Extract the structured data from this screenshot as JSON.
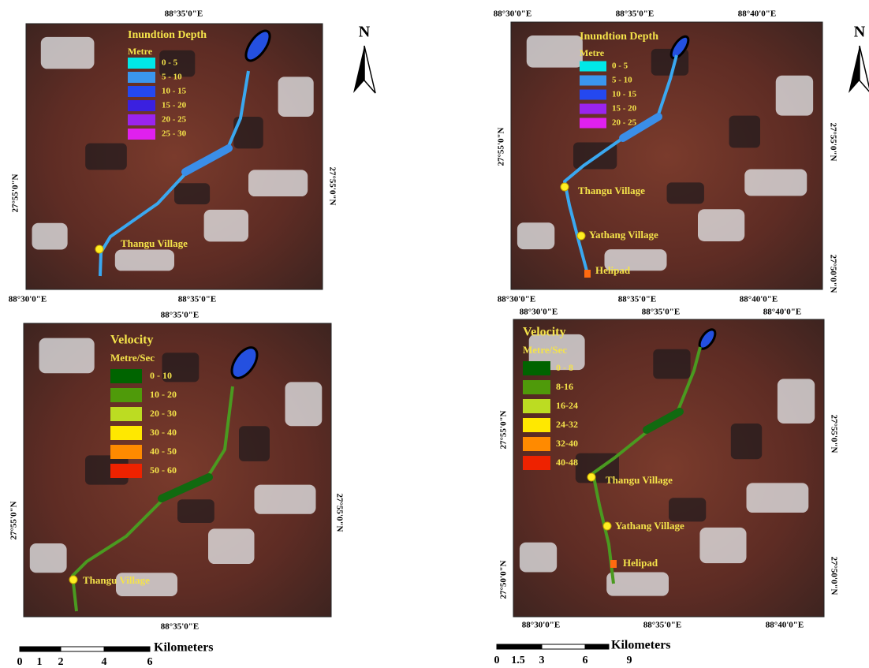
{
  "north": "N",
  "panels": [
    {
      "top_labels": [
        "88°35'0\"E"
      ],
      "bottom_labels": [
        "88°30'0\"E",
        "88°35'0\"E"
      ],
      "left_labels": [
        "27°55'0\"N"
      ],
      "right_labels": [
        "27°55'0\"N"
      ],
      "legend": {
        "title": "Inundtion Depth",
        "unit": "Metre",
        "items": [
          {
            "label": "0 - 5",
            "color": "#00e8e8"
          },
          {
            "label": "5 - 10",
            "color": "#3a96ee"
          },
          {
            "label": "10 - 15",
            "color": "#2448f0"
          },
          {
            "label": "15 - 20",
            "color": "#3a20e0"
          },
          {
            "label": "20 - 25",
            "color": "#9a24ee"
          },
          {
            "label": "25 - 30",
            "color": "#e020ee"
          }
        ]
      },
      "places": [
        "Thangu Village"
      ]
    },
    {
      "top_labels": [
        "88°30'0\"E",
        "88°35'0\"E",
        "88°40'0\"E"
      ],
      "bottom_labels": [
        "88°30'0\"E",
        "88°35'0\"E",
        "88°40'0\"E"
      ],
      "left_labels": [
        "27°55'0\"N"
      ],
      "right_labels": [
        "27°55'0\"N",
        "27°50'0\"N"
      ],
      "legend": {
        "title": "Inundtion Depth",
        "unit": "Metre",
        "items": [
          {
            "label": "0 - 5",
            "color": "#00e8e8"
          },
          {
            "label": "5 - 10",
            "color": "#3a96ee"
          },
          {
            "label": "10 - 15",
            "color": "#2448f0"
          },
          {
            "label": "15 - 20",
            "color": "#9a24ee"
          },
          {
            "label": "20 - 25",
            "color": "#e020ee"
          }
        ]
      },
      "places": [
        "Thangu Village",
        "Yathang Village",
        "Helipad"
      ]
    },
    {
      "top_labels": [
        "88°35'0\"E"
      ],
      "bottom_labels": [
        "88°35'0\"E"
      ],
      "left_labels": [
        "27°55'0\"N"
      ],
      "right_labels": [
        "27°55'0\"N"
      ],
      "legend": {
        "title": "Velocity",
        "unit": "Metre/Sec",
        "items": [
          {
            "label": "0 - 10",
            "color": "#006400"
          },
          {
            "label": "10 - 20",
            "color": "#4f9a0a"
          },
          {
            "label": "20 - 30",
            "color": "#bcdc22"
          },
          {
            "label": "30 - 40",
            "color": "#ffe800"
          },
          {
            "label": "40 - 50",
            "color": "#ff8a00"
          },
          {
            "label": "50 - 60",
            "color": "#ee2200"
          }
        ]
      },
      "places": [
        "Thangu Village"
      ]
    },
    {
      "top_labels": [
        "88°30'0\"E",
        "88°35'0\"E",
        "88°40'0\"E"
      ],
      "bottom_labels": [
        "88°30'0\"E",
        "88°35'0\"E",
        "88°40'0\"E"
      ],
      "left_labels": [
        "27°55'0\"N",
        "27°50'0\"N"
      ],
      "right_labels": [
        "27°55'0\"N",
        "27°50'0\"N"
      ],
      "legend": {
        "title": "Velocity",
        "unit": "Metre/Sec",
        "items": [
          {
            "label": "0 - 8",
            "color": "#006400"
          },
          {
            "label": "8-16",
            "color": "#4f9a0a"
          },
          {
            "label": "16-24",
            "color": "#bcdc22"
          },
          {
            "label": "24-32",
            "color": "#ffe800"
          },
          {
            "label": "32-40",
            "color": "#ff8a00"
          },
          {
            "label": "40-48",
            "color": "#ee2200"
          }
        ]
      },
      "places": [
        "Thangu Village",
        "Yathang Village",
        "Helipad"
      ]
    }
  ],
  "scale_bars": [
    {
      "ticks": [
        "0",
        "1",
        "2",
        "4",
        "6"
      ],
      "unit": "Kilometers"
    },
    {
      "ticks": [
        "0",
        "1.5",
        "3",
        "6",
        "9"
      ],
      "unit": "Kilometers"
    }
  ]
}
